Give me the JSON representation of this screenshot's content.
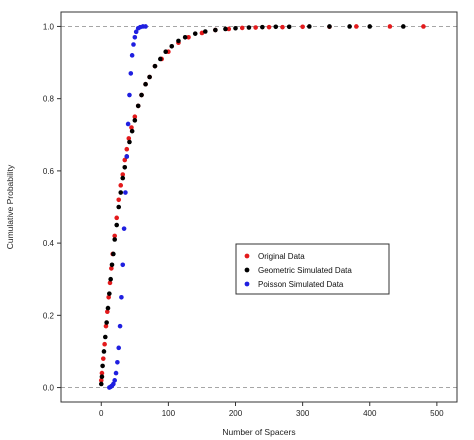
{
  "chart_data": {
    "type": "scatter",
    "title": "",
    "xlabel": "Number of Spacers",
    "ylabel": "Cumulative Probability",
    "xlim": [
      -60,
      530
    ],
    "ylim": [
      -0.04,
      1.04
    ],
    "xticks": [
      0,
      100,
      200,
      300,
      400,
      500
    ],
    "yticks": [
      0.0,
      0.2,
      0.4,
      0.6,
      0.8,
      1.0
    ],
    "xtick_labels": [
      "0",
      "100",
      "200",
      "300",
      "400",
      "500"
    ],
    "ytick_labels": [
      "0.0",
      "0.2",
      "0.4",
      "0.6",
      "0.8",
      "1.0"
    ],
    "reference_lines": [
      0.0,
      1.0
    ],
    "grid": false,
    "legend_position": "center-right",
    "series": [
      {
        "name": "Original Data",
        "color": "#e31a1c",
        "x": [
          0,
          1,
          3,
          5,
          7,
          9,
          11,
          13,
          15,
          17,
          20,
          23,
          26,
          29,
          32,
          35,
          38,
          41,
          45,
          50,
          55,
          60,
          66,
          72,
          80,
          90,
          100,
          115,
          130,
          150,
          170,
          190,
          210,
          230,
          250,
          270,
          300,
          340,
          380,
          430,
          480
        ],
        "y": [
          0.02,
          0.04,
          0.08,
          0.12,
          0.17,
          0.21,
          0.25,
          0.29,
          0.33,
          0.37,
          0.42,
          0.47,
          0.52,
          0.56,
          0.59,
          0.63,
          0.66,
          0.69,
          0.72,
          0.75,
          0.78,
          0.81,
          0.84,
          0.86,
          0.89,
          0.91,
          0.93,
          0.955,
          0.97,
          0.982,
          0.99,
          0.993,
          0.996,
          0.997,
          0.998,
          0.998,
          0.999,
          0.999,
          1.0,
          1.0,
          1.0
        ]
      },
      {
        "name": "Geometric Simulated Data",
        "color": "#000000",
        "x": [
          0,
          1,
          2,
          4,
          6,
          8,
          10,
          12,
          14,
          16,
          18,
          20,
          23,
          26,
          29,
          32,
          35,
          38,
          42,
          46,
          50,
          55,
          60,
          66,
          72,
          80,
          88,
          96,
          105,
          115,
          125,
          140,
          155,
          170,
          185,
          200,
          220,
          240,
          260,
          280,
          310,
          340,
          370,
          400,
          450
        ],
        "y": [
          0.01,
          0.03,
          0.06,
          0.1,
          0.14,
          0.18,
          0.22,
          0.26,
          0.3,
          0.34,
          0.37,
          0.41,
          0.45,
          0.5,
          0.54,
          0.58,
          0.61,
          0.64,
          0.68,
          0.71,
          0.74,
          0.78,
          0.81,
          0.84,
          0.86,
          0.89,
          0.91,
          0.93,
          0.945,
          0.96,
          0.97,
          0.98,
          0.986,
          0.99,
          0.993,
          0.995,
          0.997,
          0.998,
          0.999,
          0.999,
          1.0,
          1.0,
          1.0,
          1.0,
          1.0
        ]
      },
      {
        "name": "Poisson Simulated Data",
        "color": "#1f1fe0",
        "x": [
          12,
          14,
          16,
          18,
          20,
          22,
          24,
          26,
          28,
          30,
          32,
          34,
          36,
          38,
          40,
          42,
          44,
          46,
          48,
          50,
          52,
          55,
          58,
          62,
          66
        ],
        "y": [
          0.0,
          0.002,
          0.005,
          0.01,
          0.02,
          0.04,
          0.07,
          0.11,
          0.17,
          0.25,
          0.34,
          0.44,
          0.54,
          0.64,
          0.73,
          0.81,
          0.87,
          0.92,
          0.95,
          0.97,
          0.985,
          0.995,
          0.998,
          1.0,
          1.0
        ]
      }
    ]
  }
}
